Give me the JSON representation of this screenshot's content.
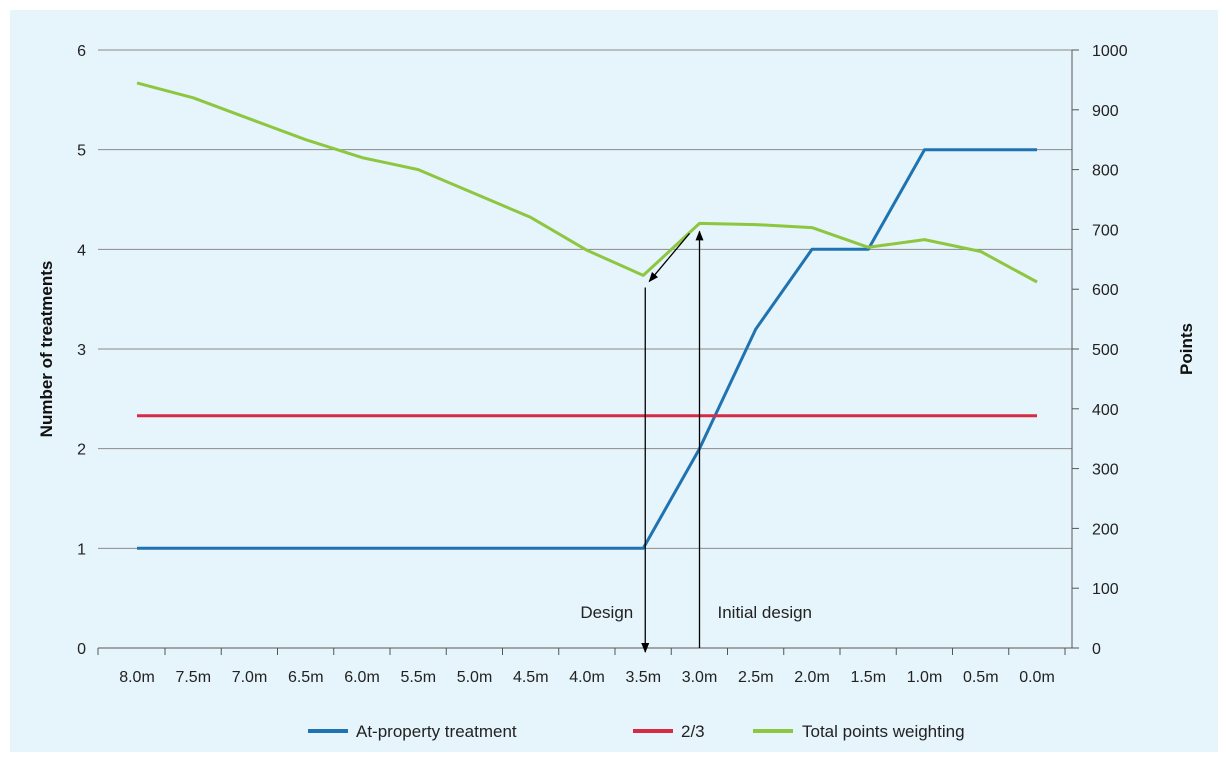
{
  "chart_data": {
    "type": "line",
    "categories": [
      "8.0m",
      "7.5m",
      "7.0m",
      "6.5m",
      "6.0m",
      "5.5m",
      "5.0m",
      "4.5m",
      "4.0m",
      "3.5m",
      "3.0m",
      "2.5m",
      "2.0m",
      "1.5m",
      "1.0m",
      "0.5m",
      "0.0m"
    ],
    "y_left": {
      "label": "Number of treatments",
      "ticks": [
        0,
        1,
        2,
        3,
        4,
        5,
        6
      ],
      "range": [
        0,
        6
      ]
    },
    "y_right": {
      "label": "Points",
      "ticks": [
        0,
        100,
        200,
        300,
        400,
        500,
        600,
        700,
        800,
        900,
        1000
      ],
      "range": [
        0,
        1000
      ]
    },
    "grid": "horizontal",
    "legend_position": "bottom",
    "series": [
      {
        "name": "At-property treatment",
        "axis": "left",
        "color": "#1f73b1",
        "values": [
          1,
          1,
          1,
          1,
          1,
          1,
          1,
          1,
          1,
          1,
          2,
          3.2,
          4,
          4,
          5,
          5,
          5
        ]
      },
      {
        "name": "2/3",
        "axis": "left",
        "color": "#d62a45",
        "values": [
          2.33,
          2.33,
          2.33,
          2.33,
          2.33,
          2.33,
          2.33,
          2.33,
          2.33,
          2.33,
          2.33,
          2.33,
          2.33,
          2.33,
          2.33,
          2.33,
          2.33
        ]
      },
      {
        "name": "Total points weighting",
        "axis": "right",
        "color": "#8dc63f",
        "values": [
          945,
          920,
          885,
          850,
          820,
          800,
          760,
          720,
          665,
          623,
          710,
          708,
          703,
          670,
          683,
          663,
          612
        ]
      }
    ],
    "annotations": [
      {
        "text": "Design",
        "x": "3.5m"
      },
      {
        "text": "Initial design",
        "x": "3.0m"
      }
    ]
  }
}
